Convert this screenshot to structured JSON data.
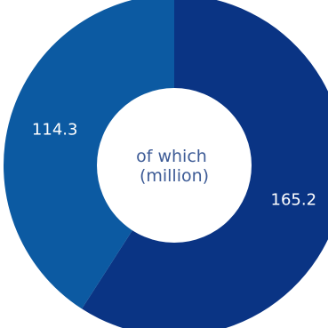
{
  "chart_data": {
    "type": "pie",
    "donut": true,
    "center_label": [
      "of which",
      "(million)"
    ],
    "slices": [
      {
        "label": "165.2",
        "value": 165.2,
        "color": "#0a3484"
      },
      {
        "label": "114.3",
        "value": 114.3,
        "color": "#0c5aa2"
      }
    ],
    "start_angle_deg": 0,
    "direction": "clockwise"
  }
}
